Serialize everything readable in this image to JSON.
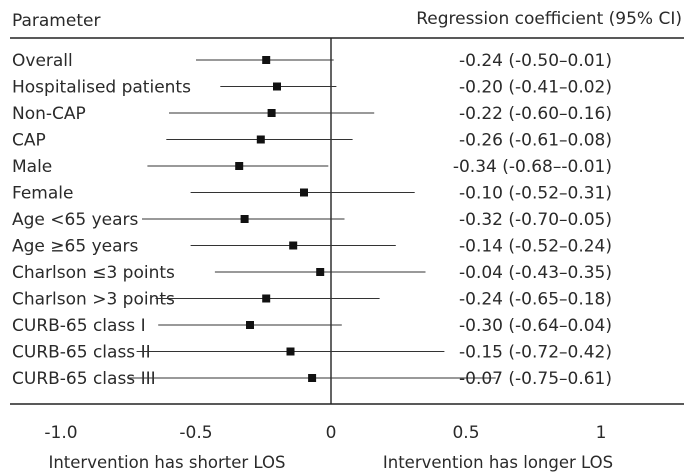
{
  "chart_data": {
    "type": "forest",
    "column_headers": {
      "left": "Parameter",
      "right": "Regression coefficient (95% CI)"
    },
    "xlim": [
      -1.0,
      1.0
    ],
    "x_ticks": [
      "-1.0",
      "-0.5",
      "0",
      "0.5",
      "1"
    ],
    "x_tick_values": [
      -1.0,
      -0.5,
      0,
      0.5,
      1.0
    ],
    "reference_line": 0,
    "annotations": {
      "left": "Intervention has shorter LOS",
      "right": "Intervention has longer LOS"
    },
    "rows": [
      {
        "label": "Overall",
        "estimate": -0.24,
        "lower": -0.5,
        "upper": 0.01,
        "ci_text": "-0.24 (-0.50–0.01)"
      },
      {
        "label": "Hospitalised patients",
        "estimate": -0.2,
        "lower": -0.41,
        "upper": 0.02,
        "ci_text": "-0.20 (-0.41–0.02)"
      },
      {
        "label": "Non-CAP",
        "estimate": -0.22,
        "lower": -0.6,
        "upper": 0.16,
        "ci_text": "-0.22 (-0.60–0.16)"
      },
      {
        "label": "CAP",
        "estimate": -0.26,
        "lower": -0.61,
        "upper": 0.08,
        "ci_text": "-0.26 (-0.61–0.08)"
      },
      {
        "label": "Male",
        "estimate": -0.34,
        "lower": -0.68,
        "upper": -0.01,
        "ci_text": "-0.34 (-0.68–-0.01)"
      },
      {
        "label": "Female",
        "estimate": -0.1,
        "lower": -0.52,
        "upper": 0.31,
        "ci_text": "-0.10 (-0.52–0.31)"
      },
      {
        "label": "Age <65 years",
        "estimate": -0.32,
        "lower": -0.7,
        "upper": 0.05,
        "ci_text": "-0.32 (-0.70–0.05)"
      },
      {
        "label": "Age ≥65 years",
        "estimate": -0.14,
        "lower": -0.52,
        "upper": 0.24,
        "ci_text": "-0.14 (-0.52–0.24)"
      },
      {
        "label": "Charlson ≤3 points",
        "estimate": -0.04,
        "lower": -0.43,
        "upper": 0.35,
        "ci_text": "-0.04 (-0.43–0.35)"
      },
      {
        "label": "Charlson >3 points",
        "estimate": -0.24,
        "lower": -0.65,
        "upper": 0.18,
        "ci_text": "-0.24 (-0.65–0.18)"
      },
      {
        "label": "CURB-65 class I",
        "estimate": -0.3,
        "lower": -0.64,
        "upper": 0.04,
        "ci_text": "-0.30 (-0.64–0.04)"
      },
      {
        "label": "CURB-65 class II",
        "estimate": -0.15,
        "lower": -0.72,
        "upper": 0.42,
        "ci_text": "-0.15 (-0.72–0.42)"
      },
      {
        "label": "CURB-65 class III",
        "estimate": -0.07,
        "lower": -0.75,
        "upper": 0.61,
        "ci_text": "-0.07 (-0.75–0.61)"
      }
    ]
  }
}
